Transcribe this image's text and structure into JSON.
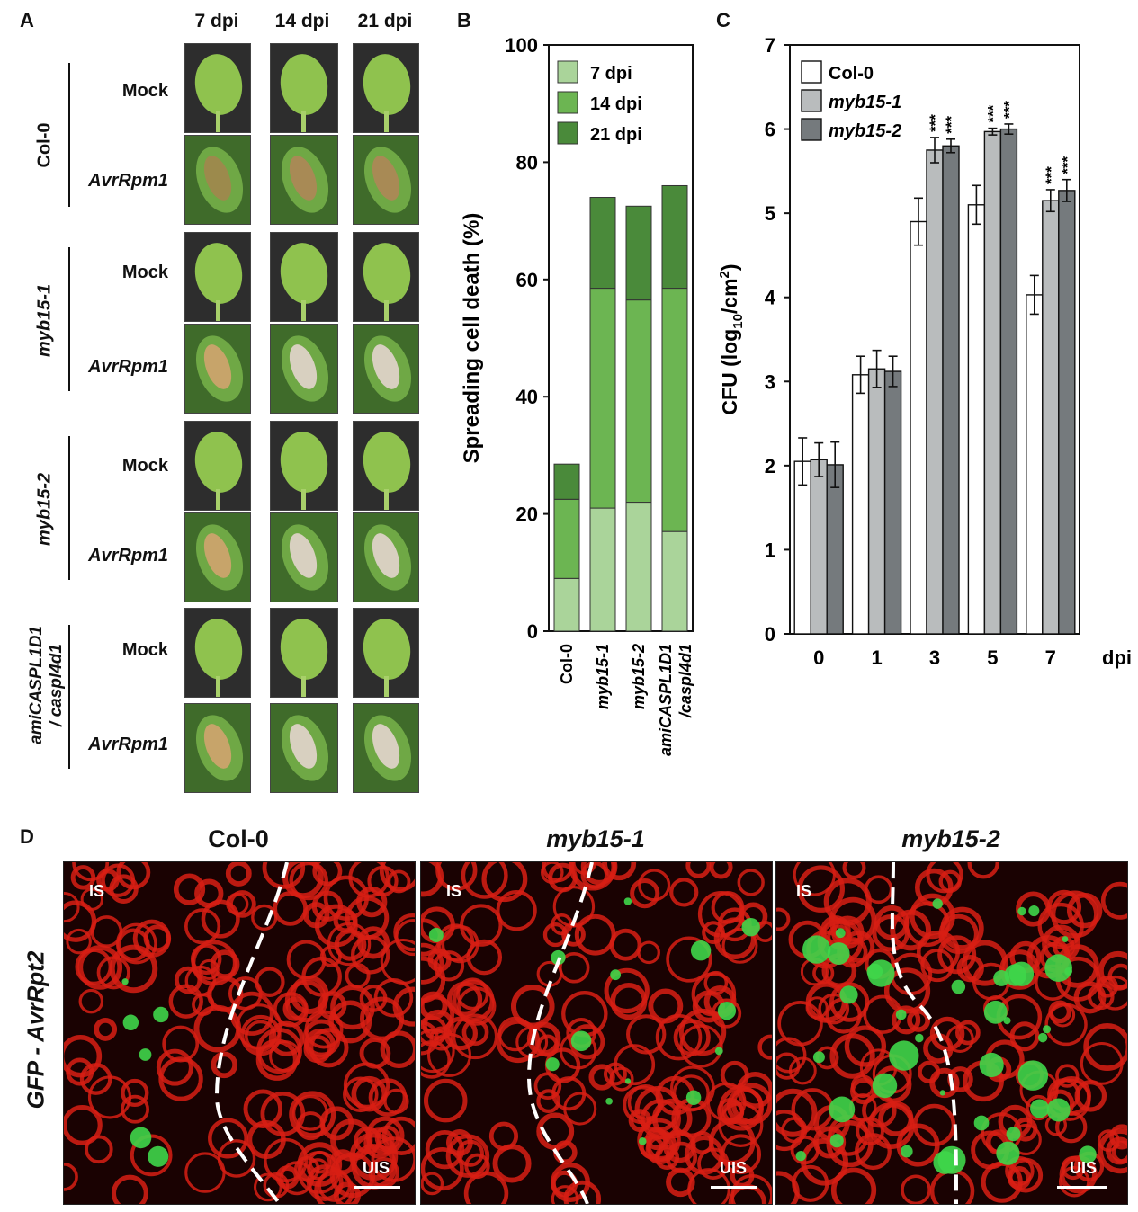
{
  "panel_a": {
    "label": "A",
    "time_headers": [
      "7 dpi",
      "14 dpi",
      "21 dpi"
    ],
    "genotypes": [
      {
        "name": "Col-0",
        "italic": false
      },
      {
        "name": "myb15-1",
        "italic": true
      },
      {
        "name": "myb15-2",
        "italic": true
      },
      {
        "name": "amiCASPL1D1 / caspl4d1",
        "line1": "amiCASPL1D1",
        "line2": "/ caspl4d1",
        "italic": true
      }
    ],
    "treatments": [
      "Mock",
      "AvrRpm1"
    ],
    "leaf_colors": {
      "mock": "#8fc24e",
      "lesion": "#c7a46a",
      "bleached": "#d8d0c0",
      "background": "#2d2d2d"
    }
  },
  "panel_b": {
    "label": "B",
    "legend": [
      "7 dpi",
      "14 dpi",
      "21 dpi"
    ],
    "colors": [
      "#aad49a",
      "#6cb552",
      "#4a8a3a"
    ]
  },
  "panel_c": {
    "label": "C",
    "legend": [
      "Col-0",
      "myb15-1",
      "myb15-2"
    ],
    "colors": [
      "#ffffff",
      "#b9bcbd",
      "#757a7d"
    ],
    "significance": "***",
    "x_unit": "dpi"
  },
  "panel_d": {
    "label": "D",
    "row_label": "GFP - AvrRpt2",
    "titles": [
      "Col-0",
      "myb15-1",
      "myb15-2"
    ],
    "tag_top": "IS",
    "tag_bottom": "UIS",
    "colors": {
      "tissue": "#d81e14",
      "gfp": "#3fd64a",
      "dark": "#1a0202"
    }
  },
  "chart_data": [
    {
      "type": "bar",
      "stacked": true,
      "categories": [
        "Col-0",
        "myb15-1",
        "myb15-2",
        "amiCASPL1D1 /caspl4d1"
      ],
      "series": [
        {
          "name": "7 dpi",
          "values": [
            9,
            21,
            22,
            17
          ]
        },
        {
          "name": "14 dpi",
          "values": [
            13.5,
            37.5,
            34.5,
            41.5
          ]
        },
        {
          "name": "21 dpi",
          "values": [
            6,
            15.5,
            16,
            17.5
          ]
        }
      ],
      "ylabel": "Spreading cell death (%)",
      "ylim": [
        0,
        100
      ],
      "yticks": [
        0,
        20,
        40,
        60,
        80,
        100
      ]
    },
    {
      "type": "bar",
      "categories": [
        "0",
        "1",
        "3",
        "5",
        "7"
      ],
      "series": [
        {
          "name": "Col-0",
          "values": [
            2.05,
            3.08,
            4.9,
            5.1,
            4.03
          ],
          "errors": [
            0.28,
            0.22,
            0.28,
            0.23,
            0.23
          ]
        },
        {
          "name": "myb15-1",
          "values": [
            2.07,
            3.15,
            5.75,
            5.97,
            5.15
          ],
          "errors": [
            0.2,
            0.22,
            0.15,
            0.04,
            0.13
          ]
        },
        {
          "name": "myb15-2",
          "values": [
            2.01,
            3.12,
            5.8,
            6.0,
            5.27
          ],
          "errors": [
            0.27,
            0.18,
            0.08,
            0.06,
            0.13
          ]
        }
      ],
      "significant": [
        [
          false,
          false,
          false,
          false,
          false
        ],
        [
          false,
          false,
          true,
          true,
          true
        ],
        [
          false,
          false,
          true,
          true,
          true
        ]
      ],
      "xlabel": "dpi",
      "ylabel_prefix": "CFU (log",
      "ylabel_sub": "10",
      "ylabel_mid": "/cm",
      "ylabel_sup": "2",
      "ylabel_suffix": ")",
      "ylim": [
        0,
        7
      ],
      "yticks": [
        0,
        1,
        2,
        3,
        4,
        5,
        6,
        7
      ]
    }
  ]
}
